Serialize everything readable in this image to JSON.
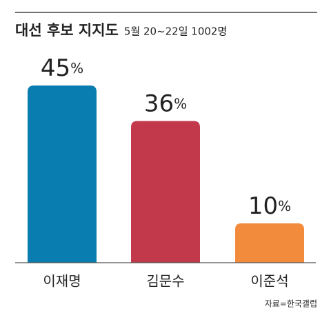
{
  "chart_data": {
    "type": "bar",
    "title": "대선 후보 지지도",
    "subtitle": "5월 20~22일 1002명",
    "categories": [
      "이재명",
      "김문수",
      "이준석"
    ],
    "values": [
      45,
      36,
      10
    ],
    "value_labels": [
      "45%",
      "36%",
      "10%"
    ],
    "colors": [
      "#0a7db0",
      "#c1394a",
      "#f28c3c"
    ],
    "source": "자료=한국갤럽"
  }
}
